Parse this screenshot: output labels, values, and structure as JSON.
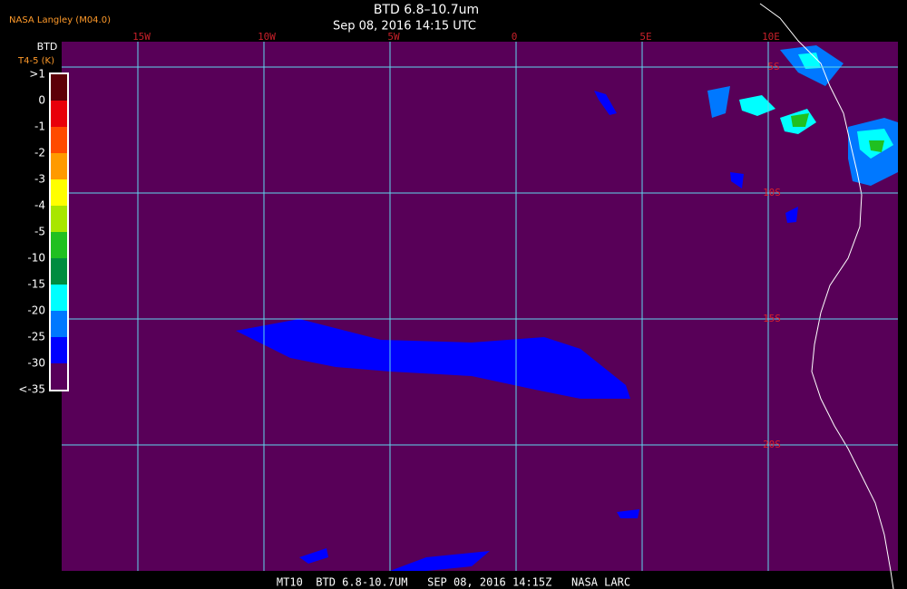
{
  "header": {
    "credit": "NASA Langley (M04.0)",
    "title": "BTD 6.8–10.7um",
    "subtitle": "Sep 08, 2016 14:15 UTC"
  },
  "colorbar": {
    "title": "BTD",
    "units": "T4-5 (K)",
    "labels": [
      ">1",
      "0",
      "-1",
      "-2",
      "-3",
      "-4",
      "-5",
      "-10",
      "-15",
      "-20",
      "-25",
      "-30",
      "<-35"
    ],
    "colors": [
      "#5c0008",
      "#e8000a",
      "#ff4a00",
      "#ff9a00",
      "#ffff00",
      "#a8e600",
      "#20c020",
      "#008c40",
      "#00ffff",
      "#0078ff",
      "#0000ff",
      "#58005a"
    ]
  },
  "map": {
    "lon_labels": [
      "15W",
      "10W",
      "5W",
      "0",
      "5E",
      "10E"
    ],
    "lat_labels": [
      "5S",
      "10S",
      "15S",
      "20S"
    ]
  },
  "footer": {
    "text": "MT10  BTD 6.8-10.7UM   SEP 08, 2016 14:15Z   NASA LARC"
  }
}
